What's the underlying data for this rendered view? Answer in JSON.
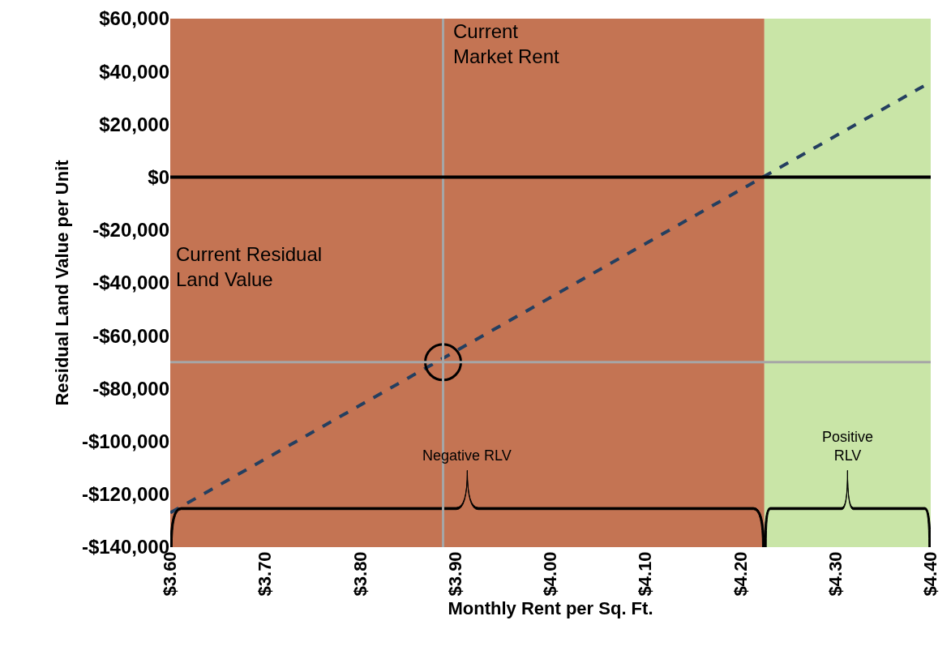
{
  "chart_data": {
    "type": "line",
    "xlabel": "Monthly Rent per Sq. Ft.",
    "ylabel": "Residual Land Value per Unit",
    "x": [
      3.6,
      4.4
    ],
    "series": [
      {
        "color": "#243f60",
        "values": [
          -127000,
          36000
        ],
        "line_style": "dashed",
        "marker": "none"
      },
      {
        "type": "scatter",
        "color": "#000000",
        "x": [
          3.887
        ],
        "values": [
          -70000
        ],
        "marker": "circle"
      }
    ],
    "xlim": [
      3.6,
      4.4
    ],
    "xticks": [
      {
        "value": 3.6,
        "label": "$3.60"
      },
      {
        "value": 3.7,
        "label": "$3.70"
      },
      {
        "value": 3.8,
        "label": "$3.80"
      },
      {
        "value": 3.9,
        "label": "$3.90"
      },
      {
        "value": 4.0,
        "label": "$4.00"
      },
      {
        "value": 4.1,
        "label": "$4.10"
      },
      {
        "value": 4.2,
        "label": "$4.20"
      },
      {
        "value": 4.3,
        "label": "$4.30"
      },
      {
        "value": 4.4,
        "label": "$4.40"
      }
    ],
    "ylim": [
      -140000,
      60000
    ],
    "yticks": [
      {
        "value": -140000,
        "label": "-$140,000"
      },
      {
        "value": -120000,
        "label": "-$120,000"
      },
      {
        "value": -100000,
        "label": "-$100,000"
      },
      {
        "value": -80000,
        "label": "-$80,000"
      },
      {
        "value": -60000,
        "label": "-$60,000"
      },
      {
        "value": -40000,
        "label": "-$40,000"
      },
      {
        "value": -20000,
        "label": "-$20,000"
      },
      {
        "value": 0,
        "label": "$0"
      },
      {
        "value": 20000,
        "label": "$20,000"
      },
      {
        "value": 40000,
        "label": "$40,000"
      },
      {
        "value": 60000,
        "label": "$60,000"
      }
    ],
    "bands": [
      {
        "axis": "x",
        "from": 3.6,
        "to": 4.225,
        "label": "Negative RLV",
        "color": "#c47453"
      },
      {
        "axis": "x",
        "from": 4.225,
        "to": 4.4,
        "label": "Positive RLV",
        "color": "#c9e5a7"
      }
    ],
    "ref_lines": [
      {
        "axis": "x",
        "value": 3.887,
        "label": "Current Market Rent",
        "color": "#a6a6a6"
      },
      {
        "axis": "y",
        "value": -70000,
        "color": "#a6a6a6"
      },
      {
        "axis": "y",
        "value": 0,
        "color": "#000000"
      }
    ],
    "annotations": [
      "Current Residual Land Value"
    ],
    "grid": false
  }
}
